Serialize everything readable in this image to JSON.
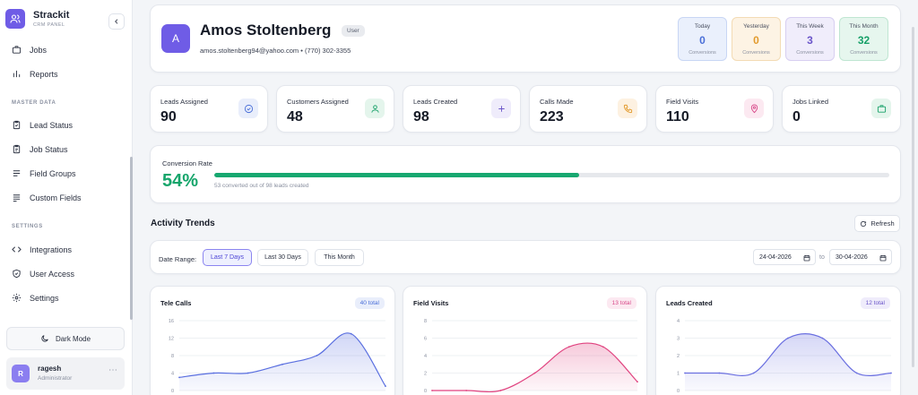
{
  "brand": {
    "name": "Strackit",
    "subtitle": "CRM PANEL"
  },
  "sidebar": {
    "items_top": [
      {
        "label": "Jobs",
        "icon": "briefcase-icon"
      },
      {
        "label": "Reports",
        "icon": "bar-chart-icon"
      }
    ],
    "master_data_label": "MASTER DATA",
    "master_data": [
      {
        "label": "Lead Status",
        "icon": "clipboard-check-icon"
      },
      {
        "label": "Job Status",
        "icon": "clipboard-icon"
      },
      {
        "label": "Field Groups",
        "icon": "list-icon"
      },
      {
        "label": "Custom Fields",
        "icon": "text-lines-icon"
      }
    ],
    "settings_label": "SETTINGS",
    "settings": [
      {
        "label": "Integrations",
        "icon": "code-icon"
      },
      {
        "label": "User Access",
        "icon": "shield-icon"
      },
      {
        "label": "Settings",
        "icon": "gear-icon"
      }
    ],
    "dark_mode_label": "Dark Mode",
    "user": {
      "initial": "R",
      "name": "ragesh",
      "role": "Administrator"
    }
  },
  "profile": {
    "initial": "A",
    "name": "Amos Stoltenberg",
    "role": "User",
    "contact": "amos.stoltenberg94@yahoo.com • (770) 302-3355",
    "conversions": [
      {
        "label": "Today",
        "value": "0",
        "sub": "Conversions",
        "color": "#4a6fd8",
        "bg": "#eaf0fc",
        "border": "#c8d6f4"
      },
      {
        "label": "Yesterday",
        "value": "0",
        "sub": "Conversions",
        "color": "#e29a2c",
        "bg": "#fdf3e4",
        "border": "#f3dbb4"
      },
      {
        "label": "This Week",
        "value": "3",
        "sub": "Conversions",
        "color": "#6a54c9",
        "bg": "#f0edfb",
        "border": "#d7cff1"
      },
      {
        "label": "This Month",
        "value": "32",
        "sub": "Conversions",
        "color": "#17a068",
        "bg": "#e6f6ee",
        "border": "#bfe6d2"
      }
    ]
  },
  "stats": [
    {
      "label": "Leads Assigned",
      "value": "90",
      "icon": "check-circle-icon",
      "color": "#4a6fd8",
      "bg": "#e9eefb"
    },
    {
      "label": "Customers Assigned",
      "value": "48",
      "icon": "user-icon",
      "color": "#17a068",
      "bg": "#e4f5ec"
    },
    {
      "label": "Leads Created",
      "value": "98",
      "icon": "plus-icon",
      "color": "#6a54c9",
      "bg": "#efecfb"
    },
    {
      "label": "Calls Made",
      "value": "223",
      "icon": "phone-icon",
      "color": "#e29a2c",
      "bg": "#fdf1e1"
    },
    {
      "label": "Field Visits",
      "value": "110",
      "icon": "map-pin-icon",
      "color": "#d84a8a",
      "bg": "#fce9f1"
    },
    {
      "label": "Jobs Linked",
      "value": "0",
      "icon": "briefcase-icon",
      "color": "#17a068",
      "bg": "#e4f5ec"
    }
  ],
  "conversion": {
    "title": "Conversion Rate",
    "percent_label": "54%",
    "fraction": 0.54,
    "note": "53 converted out of 98 leads created"
  },
  "activity": {
    "title": "Activity Trends",
    "refresh_label": "Refresh",
    "date_range_label": "Date Range:",
    "ranges": [
      "Last 7 Days",
      "Last 30 Days",
      "This Month"
    ],
    "active_range": "Last 7 Days",
    "from_date": "24-04-2026",
    "to_label": "to",
    "to_date": "30-04-2026"
  },
  "chart_data": [
    {
      "type": "area",
      "title": "Tele Calls",
      "badge": "40 total",
      "color": "#5a6fe0",
      "badge_color": "#4a6fd8",
      "badge_bg": "#e9eefb",
      "yticks": [
        "16",
        "12",
        "8",
        "4",
        "0"
      ],
      "ylim": [
        0,
        16
      ],
      "values": [
        3,
        4,
        4,
        6,
        8,
        13,
        1
      ]
    },
    {
      "type": "area",
      "title": "Field Visits",
      "badge": "13 total",
      "color": "#e0427f",
      "badge_color": "#d84a8a",
      "badge_bg": "#fce9f1",
      "yticks": [
        "8",
        "6",
        "4",
        "2",
        "0"
      ],
      "ylim": [
        0,
        8
      ],
      "values": [
        0,
        0,
        0,
        2,
        5,
        5,
        1
      ]
    },
    {
      "type": "area",
      "title": "Leads Created",
      "badge": "12 total",
      "color": "#6a6fe0",
      "badge_color": "#6a54c9",
      "badge_bg": "#efecfb",
      "yticks": [
        "4",
        "3",
        "2",
        "1",
        "0"
      ],
      "ylim": [
        0,
        4
      ],
      "values": [
        1,
        1,
        1,
        3,
        3,
        1,
        1
      ]
    }
  ]
}
